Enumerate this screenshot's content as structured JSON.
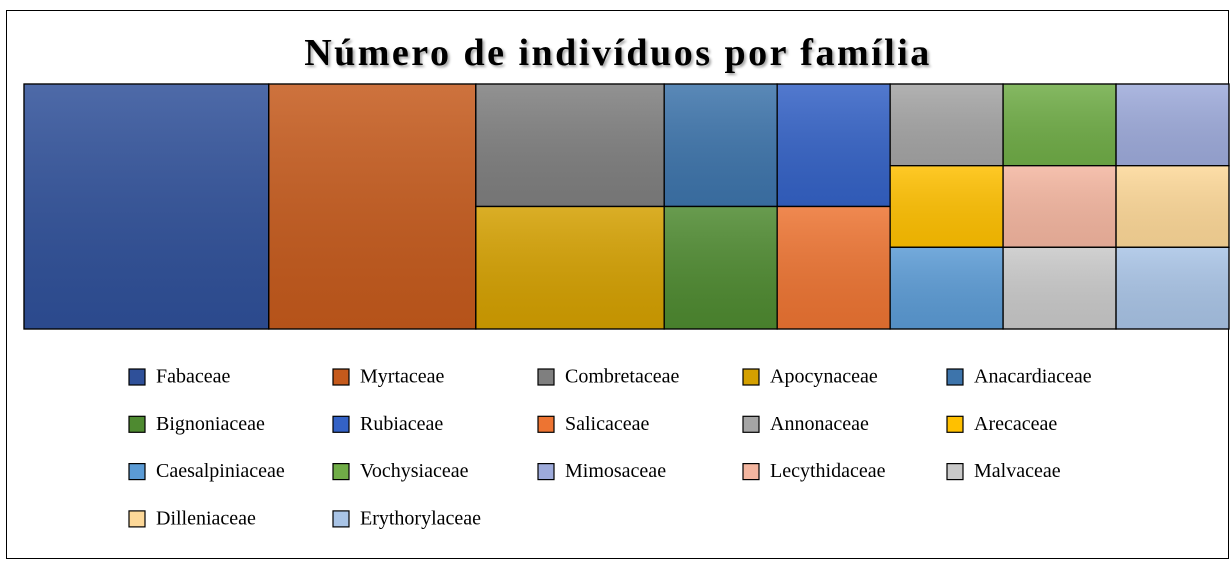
{
  "chart_data": {
    "type": "treemap",
    "title": "Número de indivíduos por família",
    "categories": [
      "Fabaceae",
      "Myrtaceae",
      "Combretaceae",
      "Apocynaceae",
      "Anacardiaceae",
      "Bignoniaceae",
      "Rubiaceae",
      "Salicaceae",
      "Annonaceae",
      "Arecaceae",
      "Caesalpiniaceae",
      "Vochysiaceae",
      "Mimosaceae",
      "Lecythidaceae",
      "Malvaceae",
      "Dilleniaceae",
      "Erythorylaceae"
    ],
    "values": [
      13,
      11,
      5,
      5,
      3,
      3,
      3,
      3,
      2,
      2,
      2,
      2,
      2,
      2,
      2,
      2,
      2
    ],
    "colors": [
      "#2f5099",
      "#c55a1c",
      "#7f7f7f",
      "#d4a000",
      "#3d74ab",
      "#4e8a30",
      "#3462c6",
      "#ed7432",
      "#a5a5a5",
      "#ffc000",
      "#5b9bd5",
      "#70ad47",
      "#9eabdb",
      "#f4b6a0",
      "#c9c9c9",
      "#fdd898",
      "#a9c4e6"
    ],
    "legend": "bottom"
  }
}
